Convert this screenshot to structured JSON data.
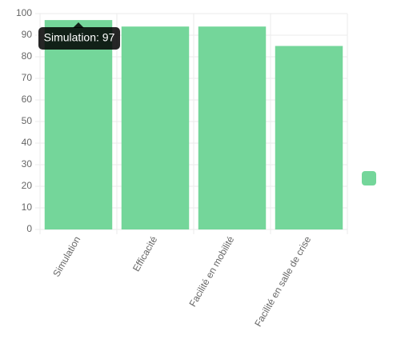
{
  "chart_data": {
    "type": "bar",
    "categories": [
      "Simulation",
      "Efficacité",
      "Facilité en mobilité",
      "Facilité en salle de crise"
    ],
    "series": [
      {
        "color": "#74d69a",
        "values": [
          97,
          94,
          94,
          85
        ]
      }
    ],
    "ylim": [
      0,
      100
    ],
    "yticks": [
      0,
      10,
      20,
      30,
      40,
      50,
      60,
      70,
      80,
      90,
      100
    ],
    "grid": true,
    "legend": "right",
    "tooltip": "Simulation: 97"
  }
}
